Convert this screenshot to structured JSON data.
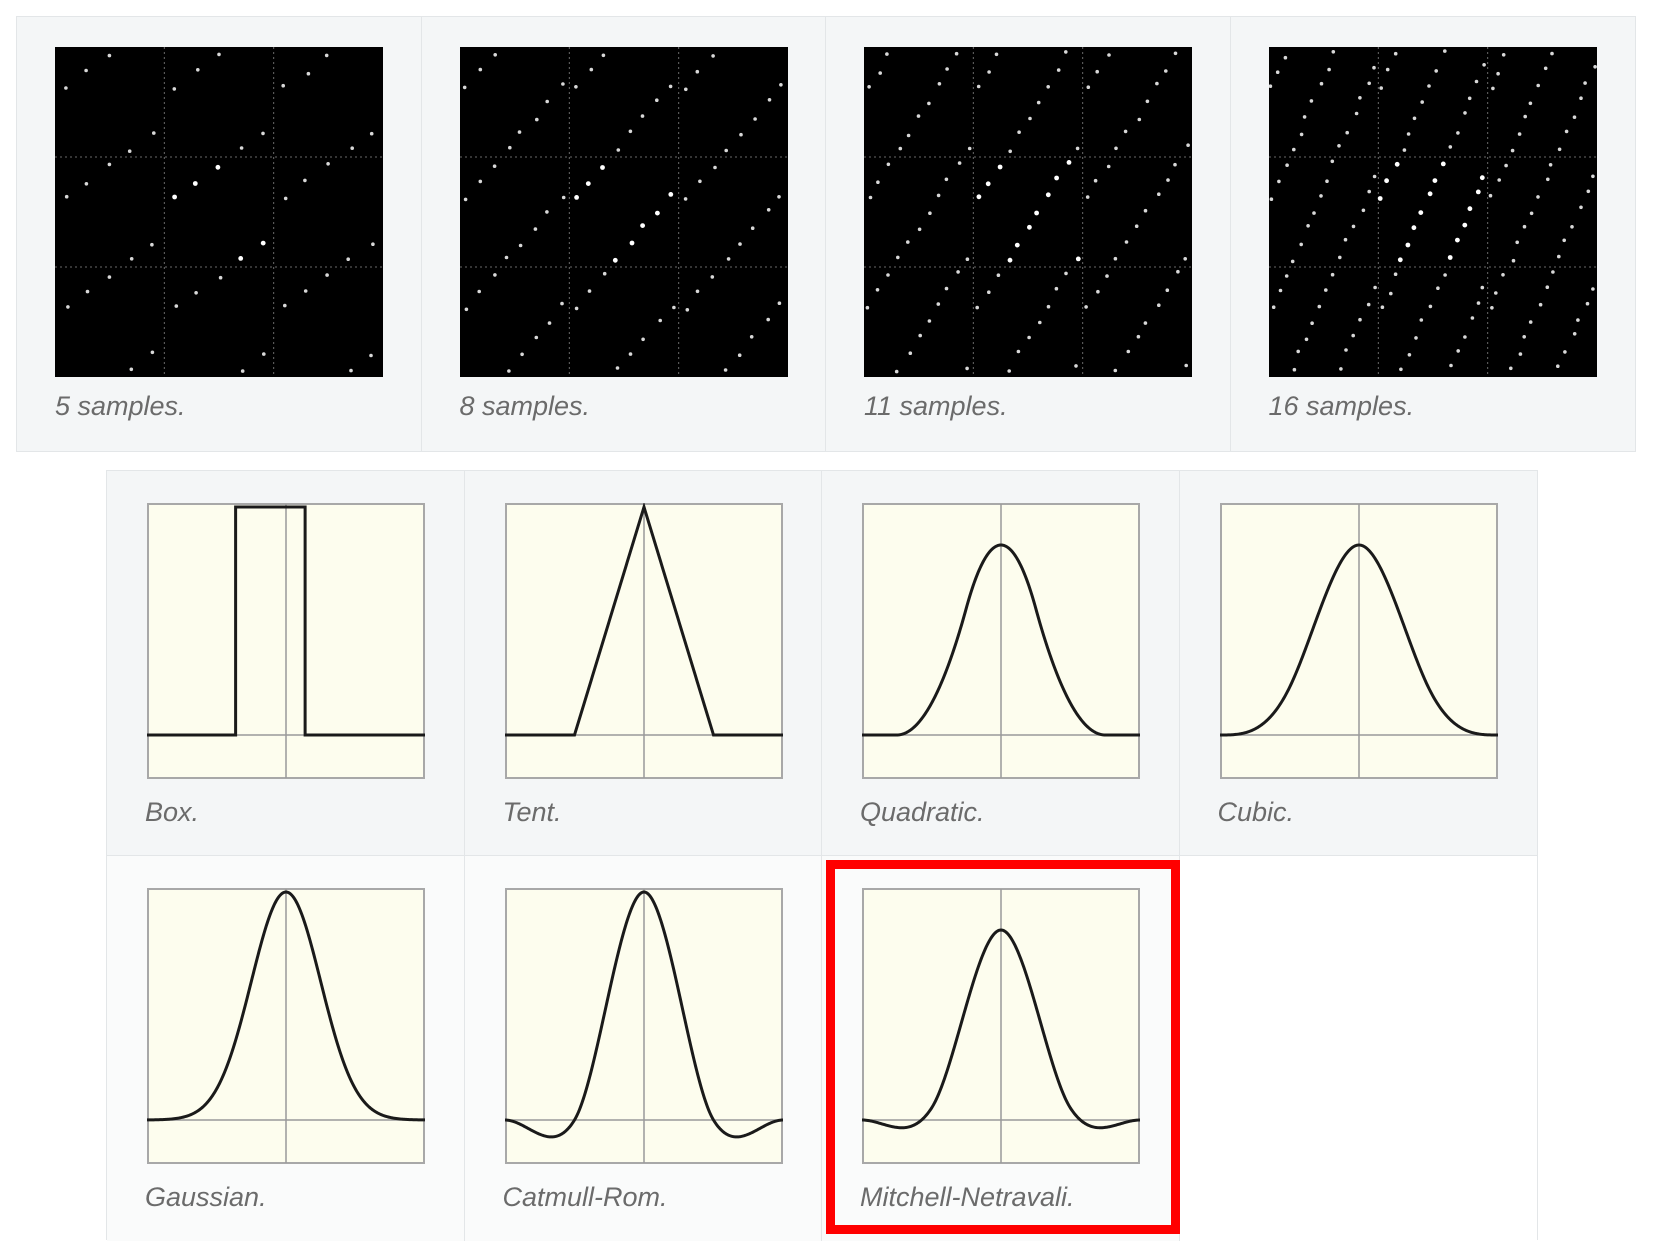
{
  "sampling_patterns": [
    {
      "caption": "5 samples."
    },
    {
      "caption": "8 samples."
    },
    {
      "caption": "11 samples."
    },
    {
      "caption": "16 samples."
    }
  ],
  "filters": [
    {
      "caption": "Box.",
      "kind": "box"
    },
    {
      "caption": "Tent.",
      "kind": "tent"
    },
    {
      "caption": "Quadratic.",
      "kind": "quadratic"
    },
    {
      "caption": "Cubic.",
      "kind": "cubic"
    },
    {
      "caption": "Gaussian.",
      "kind": "gaussian"
    },
    {
      "caption": "Catmull-Rom.",
      "kind": "catmull-rom"
    },
    {
      "caption": "Mitchell-Netravali.",
      "kind": "mitchell-netravali"
    }
  ],
  "highlighted_filter": "Mitchell-Netravali.",
  "colors": {
    "highlight": "#ff0000",
    "plot_background": "#fdfdee",
    "pattern_background": "#000000",
    "caption": "#6b6b6b"
  }
}
